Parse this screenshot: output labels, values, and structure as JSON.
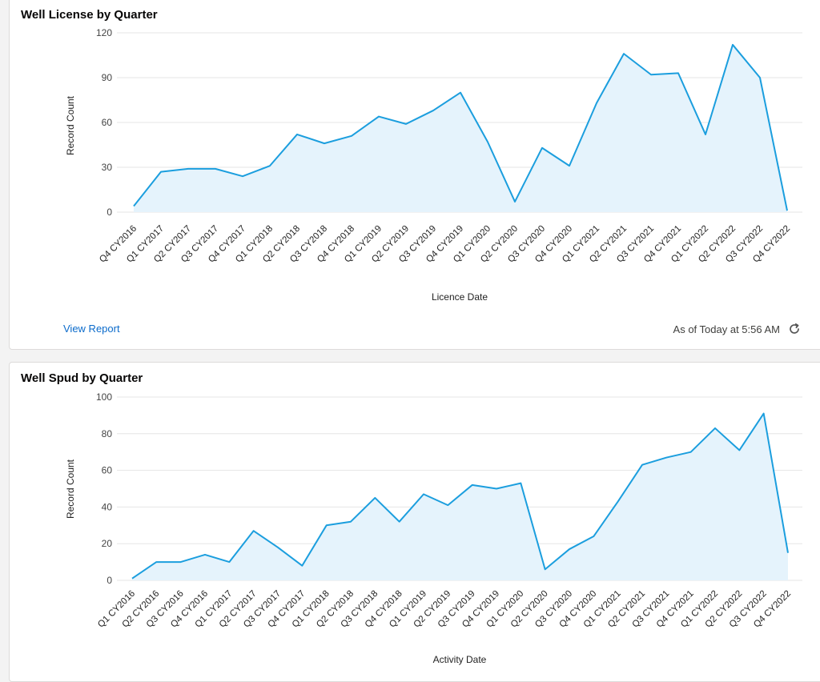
{
  "charts": [
    {
      "title": "Well License by Quarter",
      "footer": {
        "view_report": "View Report",
        "status": "As of Today at 5:56 AM"
      }
    },
    {
      "title": "Well Spud by Quarter"
    }
  ],
  "colors": {
    "line": "#1b9ede",
    "area": "#e5f3fc",
    "grid": "#e5e5e5",
    "link": "#0b6bcb"
  },
  "chart_data": [
    {
      "type": "area",
      "title": "Well License by Quarter",
      "xlabel": "Licence Date",
      "ylabel": "Record Count",
      "ylim": [
        0,
        120
      ],
      "yticks": [
        0,
        30,
        60,
        90,
        120
      ],
      "grid": true,
      "categories": [
        "Q4 CY2016",
        "Q1 CY2017",
        "Q2 CY2017",
        "Q3 CY2017",
        "Q4 CY2017",
        "Q1 CY2018",
        "Q2 CY2018",
        "Q3 CY2018",
        "Q4 CY2018",
        "Q1 CY2019",
        "Q2 CY2019",
        "Q3 CY2019",
        "Q4 CY2019",
        "Q1 CY2020",
        "Q2 CY2020",
        "Q3 CY2020",
        "Q4 CY2020",
        "Q1 CY2021",
        "Q2 CY2021",
        "Q3 CY2021",
        "Q4 CY2021",
        "Q1 CY2022",
        "Q2 CY2022",
        "Q3 CY2022",
        "Q4 CY2022"
      ],
      "values": [
        4,
        27,
        29,
        29,
        24,
        31,
        52,
        46,
        51,
        64,
        59,
        68,
        80,
        47,
        7,
        43,
        31,
        73,
        106,
        92,
        93,
        52,
        112,
        90,
        1
      ]
    },
    {
      "type": "area",
      "title": "Well Spud by Quarter",
      "xlabel": "Activity Date",
      "ylabel": "Record Count",
      "ylim": [
        0,
        100
      ],
      "yticks": [
        0,
        20,
        40,
        60,
        80,
        100
      ],
      "grid": true,
      "categories": [
        "Q1 CY2016",
        "Q2 CY2016",
        "Q3 CY2016",
        "Q4 CY2016",
        "Q1 CY2017",
        "Q2 CY2017",
        "Q3 CY2017",
        "Q4 CY2017",
        "Q1 CY2018",
        "Q2 CY2018",
        "Q3 CY2018",
        "Q4 CY2018",
        "Q1 CY2019",
        "Q2 CY2019",
        "Q3 CY2019",
        "Q4 CY2019",
        "Q1 CY2020",
        "Q2 CY2020",
        "Q3 CY2020",
        "Q4 CY2020",
        "Q1 CY2021",
        "Q2 CY2021",
        "Q3 CY2021",
        "Q4 CY2021",
        "Q1 CY2022",
        "Q2 CY2022",
        "Q3 CY2022",
        "Q4 CY2022"
      ],
      "values": [
        1,
        10,
        10,
        14,
        10,
        27,
        18,
        8,
        30,
        32,
        45,
        32,
        47,
        41,
        52,
        50,
        53,
        6,
        17,
        24,
        43,
        63,
        67,
        70,
        83,
        71,
        91,
        15
      ]
    }
  ]
}
